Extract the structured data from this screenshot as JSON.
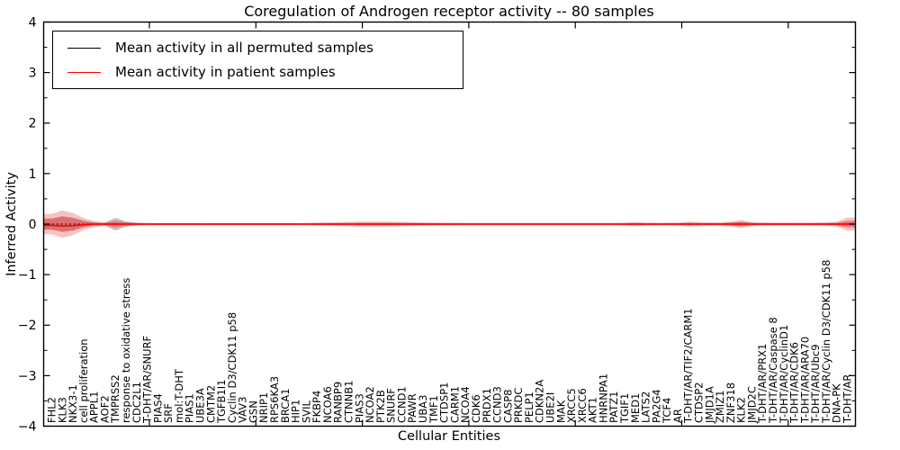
{
  "chart_data": {
    "type": "line",
    "title": "Coregulation of Androgen receptor activity -- 80 samples",
    "xlabel": "Cellular Entities",
    "ylabel": "Inferred Activity",
    "ylim": [
      -4,
      4
    ],
    "yticks": [
      4,
      3,
      2,
      1,
      0,
      -1,
      -2,
      -3,
      -4
    ],
    "grid": false,
    "legend_position": "upper left",
    "categories": [
      "FHL2",
      "KLK3",
      "NKX3-1",
      "cell proliferation",
      "APPL1",
      "AOF2",
      "TMPRSS2",
      "response to oxidative stress",
      "CDC2L1",
      "T-DHT/AR/SNURF",
      "PIAS4",
      "SRF",
      "mol:T-DHT",
      "PIAS1",
      "UBE3A",
      "CMTM2",
      "TGFB1I1",
      "Cyclin D3/CDK11 p58",
      "VAV3",
      "GSN",
      "NRIP1",
      "RPS6KA3",
      "BRCA1",
      "HIP1",
      "SVIL",
      "FKBP4",
      "NCOA6",
      "RANBP9",
      "CTNNB1",
      "PIAS3",
      "NCOA2",
      "PTK2B",
      "SNURF",
      "CCND1",
      "PAWR",
      "UBA3",
      "TMF1",
      "CTDSP1",
      "CARM1",
      "NCOA4",
      "CDK6",
      "PRDX1",
      "CCND3",
      "CASP8",
      "PRKDC",
      "PELP1",
      "CDKN2A",
      "UBE2I",
      "MAK",
      "XRCC5",
      "XRCC6",
      "AKT1",
      "HNRNPA1",
      "PATZ1",
      "TGIF1",
      "MED1",
      "LATS2",
      "PA2G4",
      "TCF4",
      "AR",
      "T-DHT/AR/TIF2/CARM1",
      "CTDSP2",
      "JMJD1A",
      "ZMIZ1",
      "ZNF318",
      "KLK2",
      "JMJD2C",
      "T-DHT/AR/PRX1",
      "T-DHT/AR/Caspase 8",
      "T-DHT/AR/CyclinD1",
      "T-DHT/AR/CDK6",
      "T-DHT/AR/ARA70",
      "T-DHT/AR/Ubc9",
      "T-DHT/AR/Cyclin D3/CDK11 p58",
      "DNA-PK",
      "T-DHT/AR"
    ],
    "series": [
      {
        "name": "Mean activity in all permuted samples",
        "color": "#000000",
        "line_style": "dotted",
        "values": [
          0,
          0,
          0,
          0,
          0,
          0,
          0,
          0,
          0,
          0,
          0,
          0,
          0,
          0,
          0,
          0,
          0,
          0,
          0,
          0,
          0,
          0,
          0,
          0,
          0,
          0,
          0,
          0,
          0,
          0,
          0,
          0,
          0,
          0,
          0,
          0,
          0,
          0,
          0,
          0,
          0,
          0,
          0,
          0,
          0,
          0,
          0,
          0,
          0,
          0,
          0,
          0,
          0,
          0,
          0,
          0,
          0,
          0,
          0,
          0,
          0,
          0,
          0,
          0,
          0,
          0,
          0,
          0,
          0,
          0,
          0,
          0,
          0,
          0,
          0,
          0
        ]
      },
      {
        "name": "Mean activity in patient samples",
        "color": "#ff0000",
        "line_style": "solid",
        "values": [
          -0.025,
          -0.04,
          -0.03,
          -0.012,
          0,
          0,
          0,
          0,
          0,
          0,
          0,
          0,
          0,
          0,
          0,
          0,
          0,
          0,
          0,
          0,
          0,
          0,
          0,
          0,
          0,
          0,
          0,
          0,
          0,
          0,
          0,
          0,
          0,
          0,
          0,
          0,
          0,
          0,
          0,
          0,
          0,
          0,
          0,
          0,
          0,
          0,
          0,
          0,
          0,
          0,
          0,
          0,
          0,
          0,
          0,
          0,
          0,
          0,
          0,
          0,
          0,
          0,
          0,
          0,
          0,
          0,
          0,
          0,
          0,
          0,
          0,
          0,
          0,
          0,
          0,
          0
        ]
      }
    ],
    "bands": [
      {
        "name": "permuted-samples-std-band",
        "color": "#808080",
        "opacity": 0.4,
        "half_widths": [
          0.1,
          0.16,
          0.13,
          0.07,
          0.03,
          0.025,
          0.13,
          0.05,
          0.022,
          0.015,
          0.012,
          0.012,
          0.012,
          0.012,
          0.012,
          0.012,
          0.012,
          0.012,
          0.012,
          0.012,
          0.012,
          0.012,
          0.012,
          0.012,
          0.012,
          0.012,
          0.012,
          0.012,
          0.012,
          0.012,
          0.012,
          0.012,
          0.012,
          0.012,
          0.012,
          0.012,
          0.012,
          0.012,
          0.012,
          0.012,
          0.012,
          0.012,
          0.012,
          0.012,
          0.012,
          0.012,
          0.012,
          0.012,
          0.012,
          0.012,
          0.012,
          0.012,
          0.012,
          0.012,
          0.012,
          0.012,
          0.012,
          0.012,
          0.012,
          0.012,
          0.015,
          0.015,
          0.012,
          0.012,
          0.03,
          0.05,
          0.02,
          0.012,
          0.012,
          0.012,
          0.012,
          0.012,
          0.012,
          0.012,
          0.02,
          0.03
        ]
      },
      {
        "name": "patient-samples-outer-band",
        "color": "#e85f5f",
        "opacity": 0.38,
        "half_widths": [
          0.2,
          0.27,
          0.22,
          0.12,
          0.06,
          0.035,
          0.09,
          0.05,
          0.03,
          0.025,
          0.022,
          0.022,
          0.022,
          0.022,
          0.022,
          0.022,
          0.022,
          0.022,
          0.022,
          0.022,
          0.022,
          0.022,
          0.022,
          0.022,
          0.025,
          0.03,
          0.035,
          0.04,
          0.045,
          0.048,
          0.05,
          0.05,
          0.048,
          0.045,
          0.04,
          0.035,
          0.03,
          0.028,
          0.026,
          0.025,
          0.025,
          0.025,
          0.025,
          0.025,
          0.025,
          0.025,
          0.025,
          0.025,
          0.025,
          0.025,
          0.025,
          0.025,
          0.025,
          0.025,
          0.03,
          0.04,
          0.032,
          0.028,
          0.028,
          0.03,
          0.05,
          0.04,
          0.035,
          0.035,
          0.05,
          0.08,
          0.045,
          0.035,
          0.032,
          0.032,
          0.032,
          0.032,
          0.034,
          0.036,
          0.05,
          0.13
        ]
      },
      {
        "name": "patient-samples-inner-band",
        "color": "#e04848",
        "opacity": 0.55,
        "half_widths": [
          0.11,
          0.15,
          0.12,
          0.06,
          0.03,
          0.02,
          0.05,
          0.028,
          0.016,
          0.013,
          0.012,
          0.012,
          0.012,
          0.012,
          0.012,
          0.012,
          0.012,
          0.012,
          0.012,
          0.012,
          0.012,
          0.012,
          0.012,
          0.012,
          0.013,
          0.016,
          0.018,
          0.021,
          0.024,
          0.026,
          0.027,
          0.027,
          0.026,
          0.024,
          0.021,
          0.018,
          0.016,
          0.015,
          0.014,
          0.013,
          0.013,
          0.013,
          0.013,
          0.013,
          0.013,
          0.013,
          0.013,
          0.013,
          0.013,
          0.013,
          0.013,
          0.013,
          0.013,
          0.013,
          0.016,
          0.021,
          0.017,
          0.015,
          0.015,
          0.016,
          0.026,
          0.021,
          0.018,
          0.018,
          0.026,
          0.042,
          0.023,
          0.018,
          0.017,
          0.017,
          0.017,
          0.017,
          0.018,
          0.019,
          0.026,
          0.068
        ]
      }
    ]
  }
}
